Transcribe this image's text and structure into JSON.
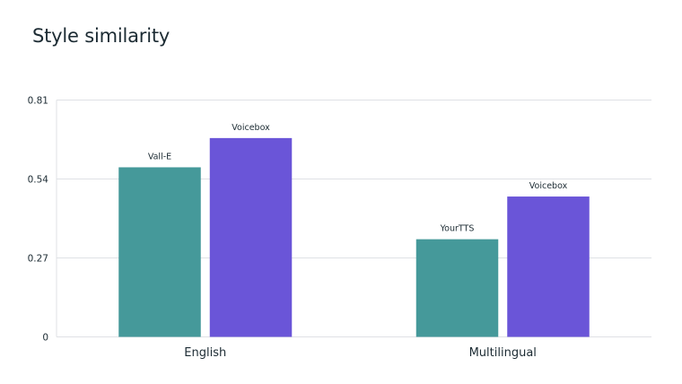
{
  "chart_data": {
    "type": "bar",
    "title": "Style similarity",
    "xlabel": "",
    "ylabel": "",
    "ylim": [
      0,
      0.81
    ],
    "yticks": [
      "0",
      "0.27",
      "0.54",
      "0.81"
    ],
    "grid": true,
    "categories": [
      "English",
      "Multilingual"
    ],
    "groups": [
      {
        "category": "English",
        "bars": [
          {
            "label": "Vall-E",
            "value": 0.58,
            "color": "#45999a"
          },
          {
            "label": "Voicebox",
            "value": 0.68,
            "color": "#6a55d8"
          }
        ]
      },
      {
        "category": "Multilingual",
        "bars": [
          {
            "label": "YourTTS",
            "value": 0.334,
            "color": "#45999a"
          },
          {
            "label": "Voicebox",
            "value": 0.48,
            "color": "#6a55d8"
          }
        ]
      }
    ]
  }
}
